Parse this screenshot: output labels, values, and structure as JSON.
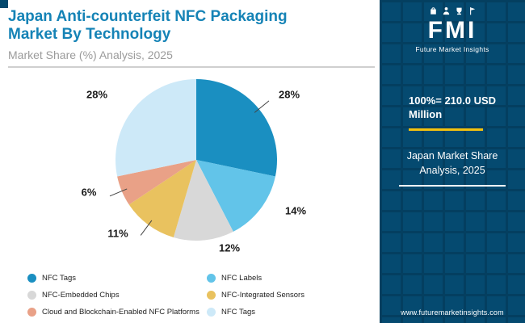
{
  "header": {
    "title_line1": "Japan Anti-counterfeit NFC Packaging",
    "title_line2": "Market By Technology",
    "subtitle": "Market Share (%) Analysis, 2025"
  },
  "chart_data": {
    "type": "pie",
    "title": "Japan Anti-counterfeit NFC Packaging Market By Technology",
    "subtitle": "Market Share (%) Analysis, 2025",
    "unit": "%",
    "legend_position": "bottom",
    "slices": [
      {
        "label": "NFC Tags",
        "value": 28,
        "color": "#1a8fc1"
      },
      {
        "label": "NFC Labels",
        "value": 14,
        "color": "#62c4e9"
      },
      {
        "label": "NFC-Embedded Chips",
        "value": 12,
        "color": "#d8d8d8"
      },
      {
        "label": "NFC-Integrated Sensors",
        "value": 11,
        "color": "#e9c25f"
      },
      {
        "label": "Cloud and Blockchain-Enabled NFC Platforms",
        "value": 6,
        "color": "#e9a187"
      },
      {
        "label": "NFC Tags",
        "value": 28,
        "color": "#cde9f8"
      }
    ]
  },
  "sidebar": {
    "logo": {
      "brand": "FMI",
      "brand_sub": "Future Market Insights"
    },
    "total_label": "100%= 210.0 USD Million",
    "context_line1": "Japan Market Share",
    "context_line2": "Analysis, 2025",
    "website": "www.futuremarketinsights.com",
    "colors": {
      "background": "#054a70",
      "accent_yellow": "#f3c20f"
    }
  }
}
